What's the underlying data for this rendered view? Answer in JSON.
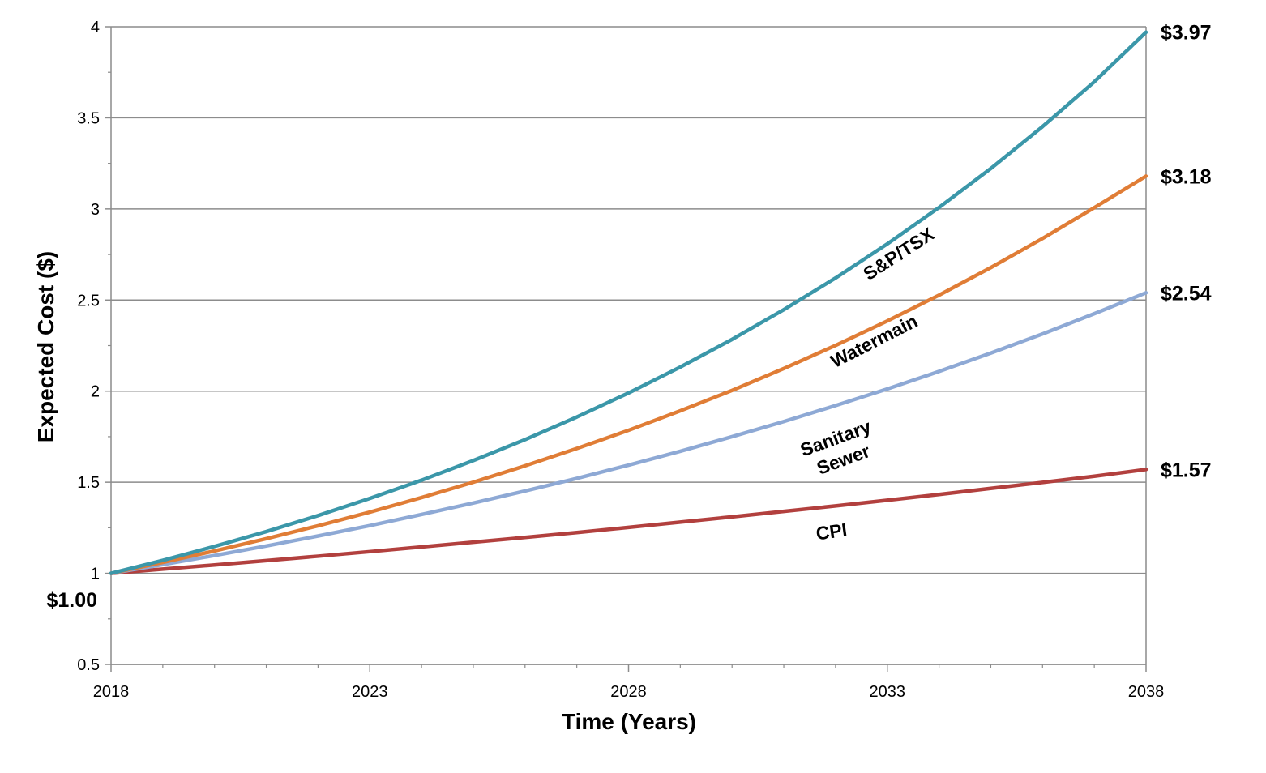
{
  "chart_data": {
    "type": "line",
    "title": "",
    "xlabel": "Time (Years)",
    "ylabel": "Expected Cost ($)",
    "xlim": [
      2018,
      2038
    ],
    "ylim": [
      0.5,
      4
    ],
    "x_ticks": [
      "2018",
      "2023",
      "2028",
      "2033",
      "2038"
    ],
    "y_ticks": [
      "0.5",
      "1",
      "1.5",
      "2",
      "2.5",
      "3",
      "3.5",
      "4"
    ],
    "grid": true,
    "legend": "none",
    "start_label": "$1.00",
    "x": [
      2018,
      2019,
      2020,
      2021,
      2022,
      2023,
      2024,
      2025,
      2026,
      2027,
      2028,
      2029,
      2030,
      2031,
      2032,
      2033,
      2034,
      2035,
      2036,
      2037,
      2038
    ],
    "series": [
      {
        "name": "S&P/TSX",
        "color": "#3b97a9",
        "end_label": "$3.97",
        "values": [
          1.0,
          1.071,
          1.148,
          1.229,
          1.317,
          1.411,
          1.511,
          1.619,
          1.734,
          1.858,
          1.99,
          2.132,
          2.284,
          2.447,
          2.621,
          2.808,
          3.008,
          3.222,
          3.452,
          3.698,
          3.97
        ]
      },
      {
        "name": "Watermain",
        "color": "#e07d36",
        "end_label": "$3.18",
        "values": [
          1.0,
          1.06,
          1.123,
          1.19,
          1.261,
          1.336,
          1.416,
          1.5,
          1.59,
          1.685,
          1.785,
          1.892,
          2.004,
          2.124,
          2.251,
          2.385,
          2.527,
          2.678,
          2.838,
          3.007,
          3.18
        ]
      },
      {
        "name": "Sanitary Sewer",
        "color": "#8ea9d5",
        "end_label": "$2.54",
        "values": [
          1.0,
          1.048,
          1.098,
          1.15,
          1.205,
          1.262,
          1.323,
          1.386,
          1.452,
          1.521,
          1.594,
          1.67,
          1.75,
          1.833,
          1.921,
          2.012,
          2.108,
          2.209,
          2.314,
          2.425,
          2.54
        ]
      },
      {
        "name": "CPI",
        "color": "#b2403e",
        "end_label": "$1.57",
        "values": [
          1.0,
          1.023,
          1.046,
          1.07,
          1.094,
          1.119,
          1.145,
          1.171,
          1.197,
          1.224,
          1.252,
          1.281,
          1.31,
          1.34,
          1.37,
          1.401,
          1.433,
          1.466,
          1.499,
          1.533,
          1.57
        ]
      }
    ]
  }
}
